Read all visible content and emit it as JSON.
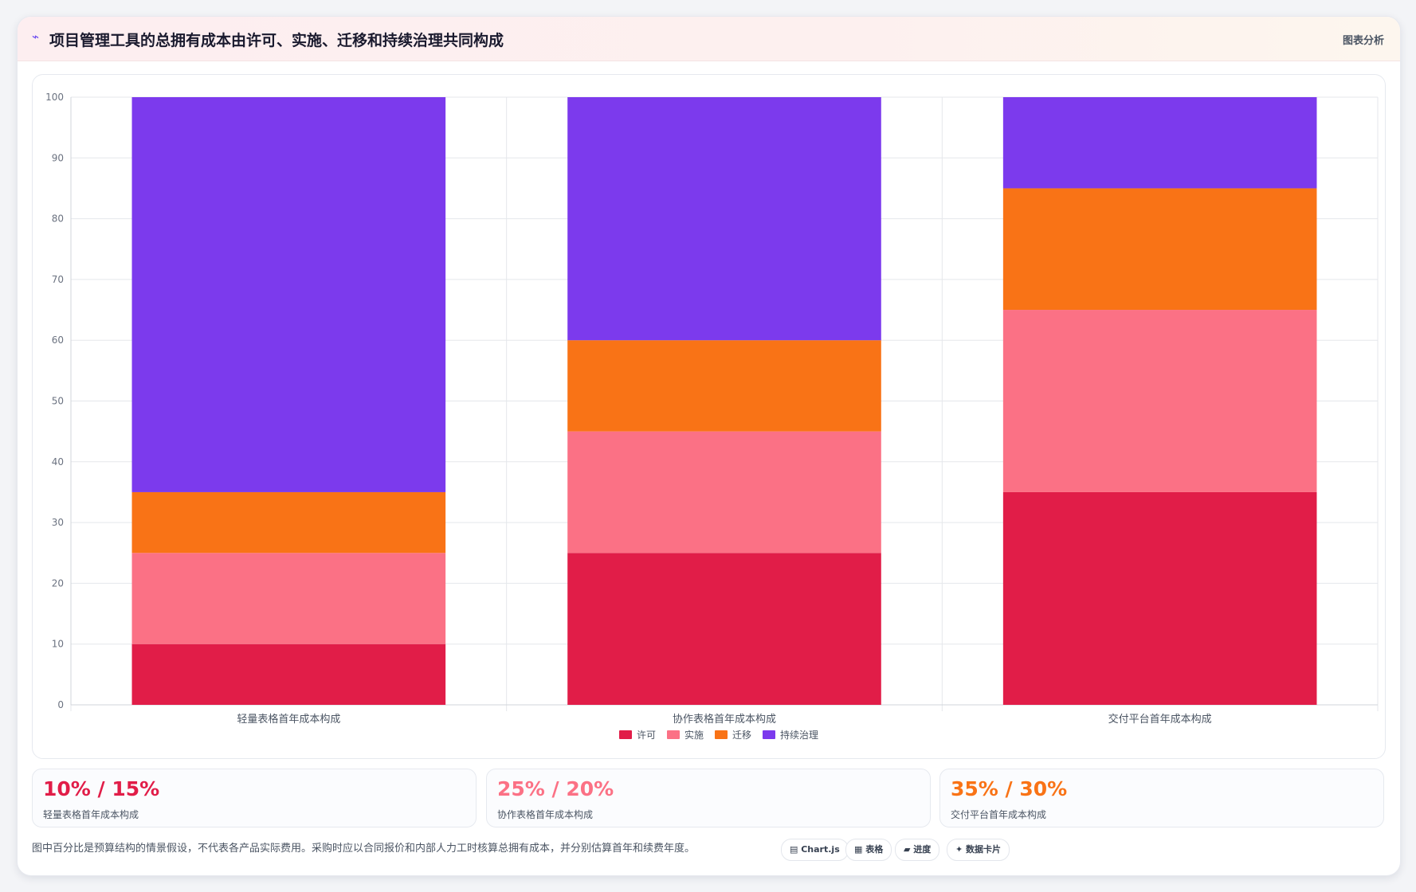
{
  "header": {
    "icon": "trend-line-icon",
    "title": "项目管理工具的总拥有成本由许可、实施、迁移和持续治理共同构成",
    "action_label": "图表分析"
  },
  "chart_data": {
    "type": "bar",
    "stacked": true,
    "categories": [
      "轻量表格首年成本构成",
      "协作表格首年成本构成",
      "交付平台首年成本构成"
    ],
    "series": [
      {
        "name": "许可",
        "color": "#e11d48",
        "values": [
          10,
          25,
          35
        ]
      },
      {
        "name": "实施",
        "color": "#fb7185",
        "values": [
          15,
          20,
          30
        ]
      },
      {
        "name": "迁移",
        "color": "#f97316",
        "values": [
          10,
          15,
          20
        ]
      },
      {
        "name": "持续治理",
        "color": "#7c3aed",
        "values": [
          65,
          40,
          15
        ]
      }
    ],
    "ylim": [
      0,
      100
    ],
    "yticks": [
      0,
      10,
      20,
      30,
      40,
      50,
      60,
      70,
      80,
      90,
      100
    ],
    "grid": true,
    "legend_position": "bottom"
  },
  "stats": [
    {
      "value": "10% / 15%",
      "label": "轻量表格首年成本构成",
      "color": "#e11d48"
    },
    {
      "value": "25% / 20%",
      "label": "协作表格首年成本构成",
      "color": "#fb7185"
    },
    {
      "value": "35% / 30%",
      "label": "交付平台首年成本构成",
      "color": "#f97316"
    }
  ],
  "footnote": "图中百分比是预算结构的情景假设，不代表各产品实际费用。采购时应以合同报价和内部人力工时核算总拥有成本，并分别估算首年和续费年度。",
  "chips": [
    {
      "icon": "chart-icon",
      "label": "Chart.js"
    },
    {
      "icon": "table-icon",
      "label": "表格"
    },
    {
      "icon": "progress-icon",
      "label": "进度"
    },
    {
      "icon": "sparkle-icon",
      "label": "数据卡片"
    }
  ]
}
